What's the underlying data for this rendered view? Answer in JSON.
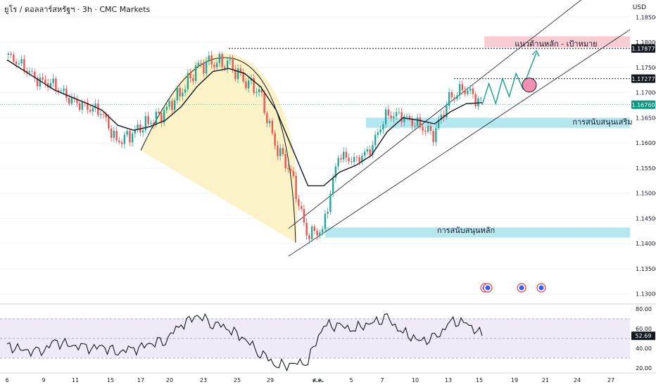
{
  "header": {
    "title": "ยูโร / ดอลลาร์สหรัฐฯ · 3h · CMC Markets",
    "currency": "USD"
  },
  "colors": {
    "up": "#26a69a",
    "down": "#ef5350",
    "ma": "#131722",
    "support_zone": "#a8e3ef",
    "target_zone": "#f7c3cb",
    "cup_fill": "#fbf2c7",
    "rsi_bg": "#efeaf8",
    "projection": "#089981",
    "current_price": "#089981"
  },
  "annotations": {
    "target": "แนวต้านหลัก - เป้าหมาย",
    "support_secondary": "การสนับสนุนเสริม",
    "support_main": "การสนับสนุนหลัก"
  },
  "price_markers": [
    {
      "label": "1.17877",
      "value": 1.17877,
      "style": "dark"
    },
    {
      "label": "1.17277",
      "value": 1.17277,
      "style": "dark"
    },
    {
      "label": "1.16760",
      "value": 1.1676,
      "style": "green"
    }
  ],
  "rsi_marker": {
    "label": "52.69",
    "value": 52.69
  },
  "chart_data": [
    {
      "type": "candlestick",
      "yaxis_ticks": [
        "1.18500",
        "1.18000",
        "1.17500",
        "1.17000",
        "1.16500",
        "1.16000",
        "1.15500",
        "1.15000",
        "1.14500",
        "1.14000",
        "1.13500",
        "1.13000"
      ],
      "ylim": [
        1.128,
        1.187
      ],
      "xaxis_ticks": [
        "6",
        "9",
        "11",
        "15",
        "17",
        "20",
        "23",
        "25",
        "29",
        "ส.ค.",
        "5",
        "7",
        "10",
        "13",
        "15",
        "19",
        "21",
        "24",
        "27"
      ],
      "x": [
        "6",
        "7",
        "8",
        "9",
        "10",
        "11",
        "14",
        "15",
        "16",
        "17",
        "18",
        "21",
        "22",
        "23",
        "24",
        "25",
        "28",
        "29",
        "30",
        "31",
        "ส.ค.",
        "4",
        "5",
        "6",
        "7",
        "8",
        "11",
        "12",
        "13",
        "14",
        "15"
      ],
      "close": [
        1.1775,
        1.1755,
        1.1725,
        1.1715,
        1.169,
        1.167,
        1.1665,
        1.16,
        1.162,
        1.164,
        1.166,
        1.17,
        1.1745,
        1.1765,
        1.1755,
        1.173,
        1.17,
        1.16,
        1.154,
        1.142,
        1.1425,
        1.1575,
        1.1565,
        1.1585,
        1.1655,
        1.1655,
        1.1635,
        1.1618,
        1.1685,
        1.1712,
        1.1676
      ],
      "moving_average": [
        1.1765,
        1.1745,
        1.1725,
        1.1705,
        1.1692,
        1.1679,
        1.1665,
        1.1635,
        1.1625,
        1.1632,
        1.1645,
        1.1672,
        1.1712,
        1.1742,
        1.1748,
        1.1738,
        1.1712,
        1.1665,
        1.159,
        1.1515,
        1.1515,
        1.1542,
        1.1555,
        1.1575,
        1.1622,
        1.165,
        1.1645,
        1.1638,
        1.1662,
        1.1678,
        1.168
      ],
      "projection_path": [
        1.1676,
        1.1718,
        1.1678,
        1.1728,
        1.1692,
        1.1738,
        1.1708,
        1.1745,
        1.1779
      ],
      "zones": [
        {
          "name": "target",
          "from": 1.179,
          "to": 1.1812
        },
        {
          "name": "support_secondary",
          "from": 1.163,
          "to": 1.165
        },
        {
          "name": "support_main",
          "from": 1.1412,
          "to": 1.1432
        }
      ],
      "channel": {
        "upper": [
          [
            0,
            1.143
          ],
          [
            1,
            1.196
          ]
        ],
        "lower": [
          [
            0,
            1.1375
          ],
          [
            1,
            1.1825
          ]
        ]
      }
    },
    {
      "type": "line",
      "yaxis_ticks": [
        "80.00",
        "60.00",
        "40.00",
        "20.00"
      ],
      "ylim": [
        15,
        85
      ],
      "reference_levels": [
        70,
        50,
        30
      ],
      "values": [
        42,
        39,
        35,
        46,
        44,
        40,
        41,
        37,
        39,
        44,
        49,
        64,
        73,
        66,
        60,
        49,
        36,
        23,
        23,
        28,
        64,
        62,
        60,
        66,
        70,
        56,
        48,
        49,
        67,
        66,
        52.69
      ]
    }
  ]
}
